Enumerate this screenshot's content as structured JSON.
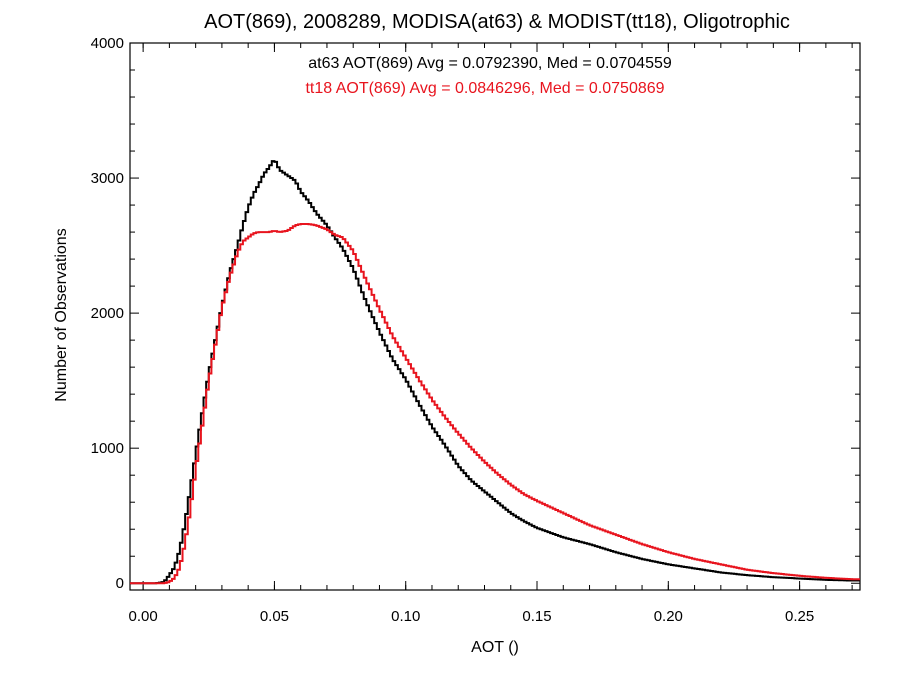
{
  "chart_data": {
    "type": "line",
    "title": "AOT(869), 2008289, MODISA(at63) & MODIST(tt18), Oligotrophic",
    "xlabel": "AOT ()",
    "ylabel": "Number of Observations",
    "xlim": [
      -0.005,
      0.273
    ],
    "ylim": [
      -50,
      4000
    ],
    "x_ticks": [
      "0.00",
      "0.05",
      "0.10",
      "0.15",
      "0.20",
      "0.25"
    ],
    "y_ticks": [
      "0",
      "1000",
      "2000",
      "3000",
      "4000"
    ],
    "grid": false,
    "annotations": [
      "at63 AOT(869) Avg = 0.0792390, Med = 0.0704559",
      "tt18 AOT(869) Avg = 0.0846296, Med = 0.0750869"
    ],
    "x": [
      0.0,
      0.005,
      0.008,
      0.01,
      0.012,
      0.014,
      0.016,
      0.018,
      0.02,
      0.022,
      0.025,
      0.028,
      0.03,
      0.033,
      0.036,
      0.038,
      0.04,
      0.042,
      0.044,
      0.046,
      0.048,
      0.05,
      0.052,
      0.055,
      0.058,
      0.06,
      0.063,
      0.066,
      0.07,
      0.073,
      0.076,
      0.08,
      0.085,
      0.09,
      0.095,
      0.1,
      0.105,
      0.11,
      0.115,
      0.12,
      0.125,
      0.13,
      0.135,
      0.14,
      0.145,
      0.15,
      0.16,
      0.17,
      0.18,
      0.19,
      0.2,
      0.21,
      0.22,
      0.23,
      0.24,
      0.25,
      0.26,
      0.27
    ],
    "series": [
      {
        "name": "at63",
        "color": "#000000",
        "values": [
          0,
          0,
          10,
          60,
          120,
          250,
          450,
          700,
          950,
          1200,
          1550,
          1850,
          2050,
          2300,
          2500,
          2650,
          2780,
          2880,
          2950,
          3030,
          3080,
          3140,
          3060,
          3020,
          2980,
          2900,
          2830,
          2740,
          2650,
          2560,
          2480,
          2330,
          2080,
          1860,
          1660,
          1510,
          1330,
          1160,
          1020,
          870,
          760,
          680,
          600,
          520,
          460,
          410,
          340,
          290,
          230,
          180,
          140,
          110,
          80,
          60,
          45,
          35,
          25,
          20
        ]
      },
      {
        "name": "tt18",
        "color": "#e8141e",
        "values": [
          0,
          0,
          0,
          10,
          40,
          120,
          300,
          550,
          840,
          1100,
          1500,
          1820,
          2040,
          2270,
          2450,
          2530,
          2560,
          2590,
          2600,
          2600,
          2600,
          2610,
          2600,
          2610,
          2650,
          2660,
          2660,
          2650,
          2620,
          2580,
          2560,
          2460,
          2240,
          2030,
          1830,
          1670,
          1510,
          1360,
          1230,
          1110,
          1000,
          900,
          810,
          730,
          660,
          610,
          520,
          430,
          360,
          290,
          230,
          180,
          140,
          100,
          75,
          55,
          40,
          30
        ]
      }
    ]
  }
}
